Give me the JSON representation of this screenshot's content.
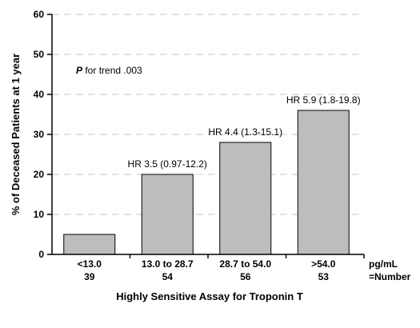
{
  "chart_data": {
    "type": "bar",
    "categories": [
      "<13.0",
      "13.0 to 28.7",
      "28.7 to 54.0",
      ">54.0"
    ],
    "category_counts": [
      "39",
      "54",
      "56",
      "53"
    ],
    "values": [
      5,
      20,
      28,
      36
    ],
    "bar_labels": [
      "",
      "HR 3.5 (0.97-12.2)",
      "HR 4.4 (1.3-15.1)",
      "HR 5.9 (1.8-19.8)"
    ],
    "ylim": [
      0,
      60
    ],
    "yticks": [
      0,
      10,
      20,
      30,
      40,
      50,
      60
    ],
    "xlabel": "Highly Sensitive Assay for Troponin T",
    "ylabel": "% of Deceased Patients at 1 year",
    "unit_label": "pg/mL",
    "count_label": "=Number",
    "annotation_p": "P",
    "annotation_rest": " for trend .003",
    "grid": true,
    "bar_color": "#bdbdbd"
  }
}
